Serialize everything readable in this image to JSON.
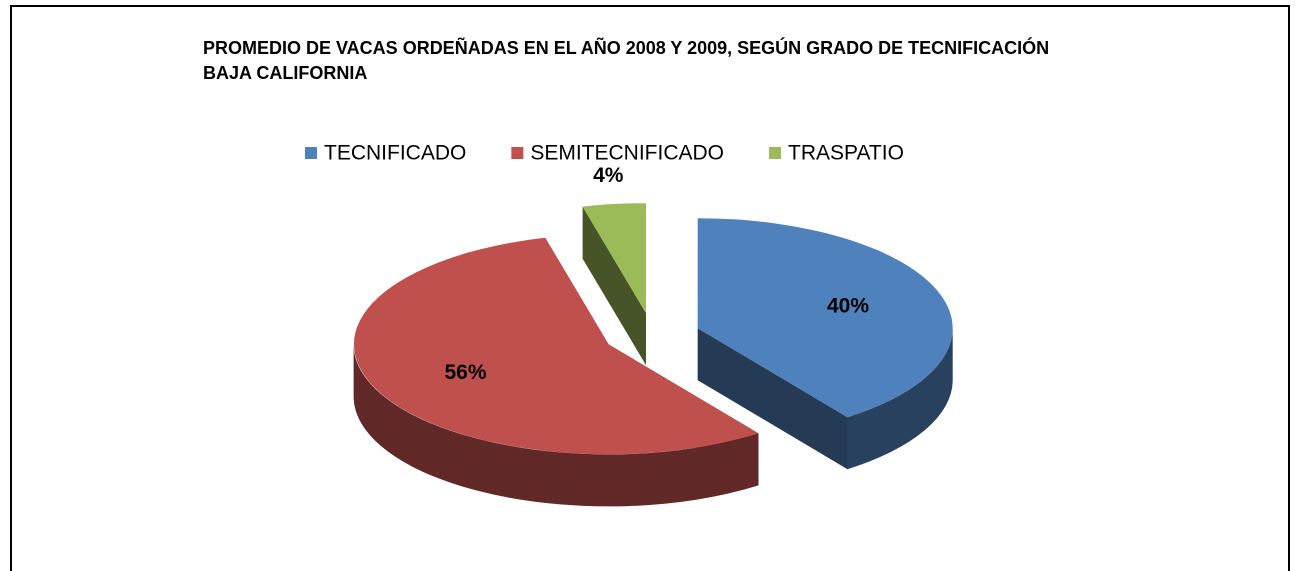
{
  "chart_data": {
    "type": "pie",
    "title": "PROMEDIO DE VACAS ORDEÑADAS EN EL AÑO 2008 Y 2009, SEGÚN GRADO DE TECNIFICACIÓN",
    "subtitle": "BAJA CALIFORNIA",
    "categories": [
      "TECNIFICADO",
      "SEMITECNIFICADO",
      "TRASPATIO"
    ],
    "values": [
      40,
      56,
      4
    ],
    "value_labels": [
      "40%",
      "56%",
      "4%"
    ],
    "colors": [
      "#4f81bd",
      "#c0504d",
      "#9bbb59"
    ],
    "legend": "top"
  }
}
